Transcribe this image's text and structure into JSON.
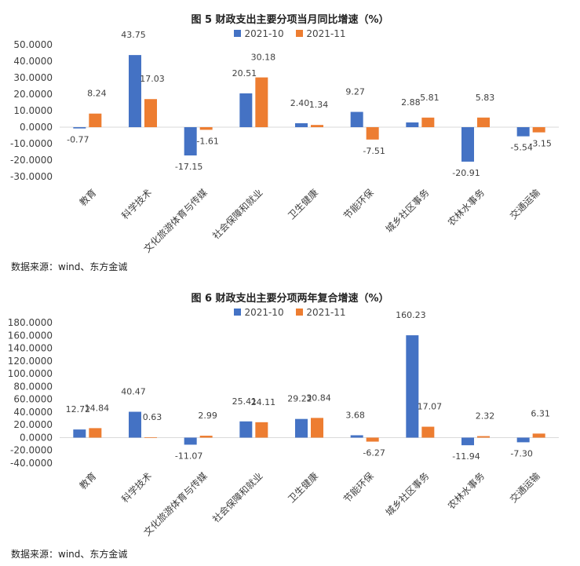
{
  "colors": {
    "series1": "#4472C4",
    "series2": "#ED7D31",
    "axis": "#d9d9d9",
    "text": "#404040"
  },
  "source_note": "数据来源：wind、东方金诚",
  "chart_data": [
    {
      "type": "bar",
      "title": "图 5  财政支出主要分项当月同比增速（%）",
      "categories": [
        "教育",
        "科学技术",
        "文化旅游体育与传媒",
        "社会保障和就业",
        "卫生健康",
        "节能环保",
        "城乡社区事务",
        "农林水事务",
        "交通运输"
      ],
      "series": [
        {
          "name": "2021-10",
          "values": [
            -0.77,
            43.75,
            -17.15,
            20.51,
            2.4,
            9.27,
            2.88,
            -20.91,
            -5.54
          ]
        },
        {
          "name": "2021-11",
          "values": [
            8.24,
            17.03,
            -1.61,
            30.18,
            1.34,
            -7.51,
            5.81,
            5.83,
            -3.15
          ]
        }
      ],
      "yticks": [
        "50.0000",
        "40.0000",
        "30.0000",
        "20.0000",
        "10.0000",
        "0.0000",
        "-10.0000",
        "-20.0000",
        "-30.0000"
      ],
      "ylim": [
        -30,
        50
      ],
      "legend": "top",
      "grid": false
    },
    {
      "type": "bar",
      "title": "图 6  财政支出主要分项两年复合增速（%）",
      "categories": [
        "教育",
        "科学技术",
        "文化旅游体育与传媒",
        "社会保障和就业",
        "卫生健康",
        "节能环保",
        "城乡社区事务",
        "农林水事务",
        "交通运输"
      ],
      "series": [
        {
          "name": "2021-10",
          "values": [
            12.72,
            40.47,
            -11.07,
            25.41,
            29.22,
            3.68,
            160.23,
            -11.94,
            -7.3
          ]
        },
        {
          "name": "2021-11",
          "values": [
            14.84,
            0.63,
            2.99,
            24.11,
            30.84,
            -6.27,
            17.07,
            2.32,
            6.31
          ]
        }
      ],
      "yticks": [
        "180.0000",
        "160.0000",
        "140.0000",
        "120.0000",
        "100.0000",
        "80.0000",
        "60.0000",
        "40.0000",
        "20.0000",
        "0.0000",
        "-20.0000",
        "-40.0000"
      ],
      "ylim": [
        -40,
        180
      ],
      "legend": "top",
      "grid": false
    }
  ]
}
